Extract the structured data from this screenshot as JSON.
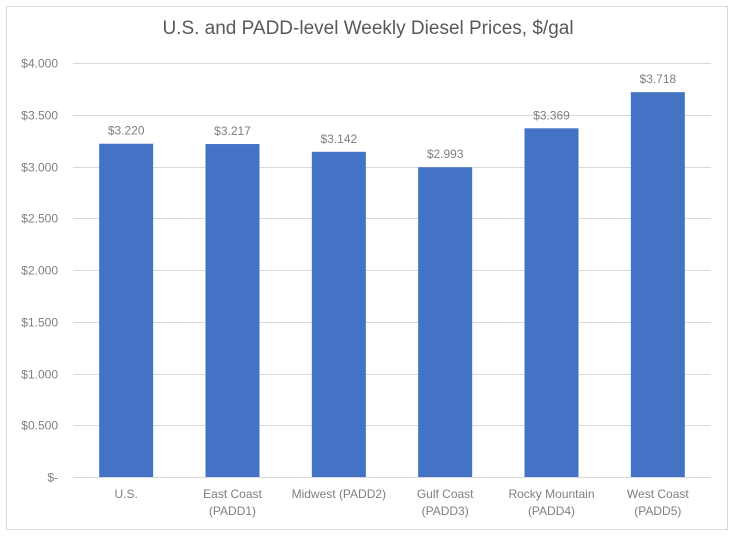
{
  "chart_data": {
    "type": "bar",
    "title": "U.S. and PADD-level Weekly Diesel Prices, $/gal",
    "xlabel": "",
    "ylabel": "",
    "categories": [
      [
        "U.S."
      ],
      [
        "East Coast",
        "(PADD1)"
      ],
      [
        "Midwest (PADD2)"
      ],
      [
        "Gulf Coast",
        "(PADD3)"
      ],
      [
        "Rocky Mountain",
        "(PADD4)"
      ],
      [
        "West Coast",
        "(PADD5)"
      ]
    ],
    "values": [
      3.22,
      3.217,
      3.142,
      2.993,
      3.369,
      3.718
    ],
    "data_labels": [
      "$3.220",
      "$3.217",
      "$3.142",
      "$2.993",
      "$3.369",
      "$3.718"
    ],
    "ylim": [
      0,
      4.0
    ],
    "yticks": [
      0,
      0.5,
      1.0,
      1.5,
      2.0,
      2.5,
      3.0,
      3.5,
      4.0
    ],
    "ytick_labels": [
      "$-",
      "$0.500",
      "$1.000",
      "$1.500",
      "$2.000",
      "$2.500",
      "$3.000",
      "$3.500",
      "$4.000"
    ],
    "grid": true,
    "legend": "none",
    "colors": {
      "bar": "#4472c4",
      "grid": "#d9d9d9",
      "text": "#7f7f7f",
      "title": "#595959"
    }
  }
}
